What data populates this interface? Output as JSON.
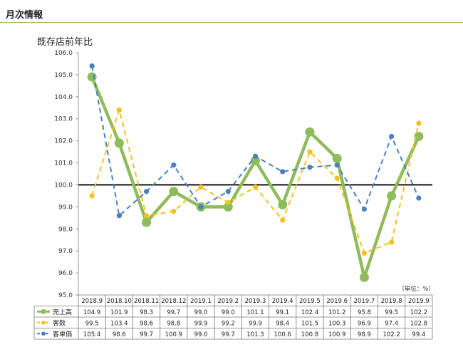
{
  "header": {
    "title": "月次情報"
  },
  "chart_data": {
    "type": "line",
    "title": "既存店前年比",
    "unit_note": "（単位：%）",
    "categories": [
      "2018.9",
      "2018.10",
      "2018.11",
      "2018.12",
      "2019.1",
      "2019.2",
      "2019.3",
      "2019.4",
      "2019.5",
      "2019.6",
      "2019.7",
      "2019.8",
      "2019.9"
    ],
    "ylim": [
      95.0,
      106.0
    ],
    "yticks": [
      "95.0",
      "96.0",
      "97.0",
      "98.0",
      "99.0",
      "100.0",
      "101.0",
      "102.0",
      "103.0",
      "104.0",
      "105.0",
      "106.0"
    ],
    "reference_line": 100.0,
    "legend_placement": "bottom-table",
    "series": [
      {
        "name": "売上高",
        "color": "#8fbc5a",
        "style": "solid-thick",
        "values": [
          104.9,
          101.9,
          98.3,
          99.7,
          99.0,
          99.0,
          101.1,
          99.1,
          102.4,
          101.2,
          95.8,
          99.5,
          102.2
        ],
        "labels": [
          "104.9",
          "101.9",
          "98.3",
          "99.7",
          "99.0",
          "99.0",
          "101.1",
          "99.1",
          "102.4",
          "101.2",
          "95.8",
          "99.5",
          "102.2"
        ]
      },
      {
        "name": "客数",
        "color": "#f5c21b",
        "style": "dashed",
        "values": [
          99.5,
          103.4,
          98.6,
          98.8,
          99.9,
          99.2,
          99.9,
          98.4,
          101.5,
          100.3,
          96.9,
          97.4,
          102.8
        ],
        "labels": [
          "99.5",
          "103.4",
          "98.6",
          "98.8",
          "99.9",
          "99.2",
          "99.9",
          "98.4",
          "101.5",
          "100.3",
          "96.9",
          "97.4",
          "102.8"
        ]
      },
      {
        "name": "客単価",
        "color": "#4a7fc1",
        "style": "dashed",
        "values": [
          105.4,
          98.6,
          99.7,
          100.9,
          99.0,
          99.7,
          101.3,
          100.6,
          100.8,
          100.9,
          98.9,
          102.2,
          99.4
        ],
        "labels": [
          "105.4",
          "98.6",
          "99.7",
          "100.9",
          "99.0",
          "99.7",
          "101.3",
          "100.6",
          "100.8",
          "100.9",
          "98.9",
          "102.2",
          "99.4"
        ]
      }
    ]
  }
}
